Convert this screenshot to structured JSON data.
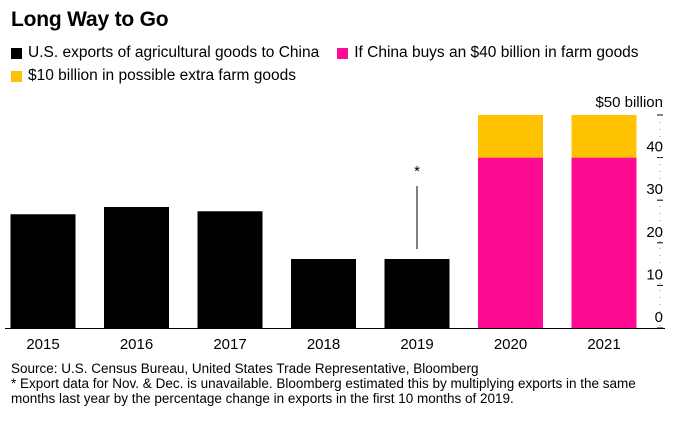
{
  "title": "Long Way to Go",
  "legend": [
    {
      "label": "U.S. exports of agricultural goods to China",
      "color": "#000000"
    },
    {
      "label": "If China buys an $40 billion in farm goods",
      "color": "#ff0a93"
    },
    {
      "label": "$10 billion in possible extra farm goods",
      "color": "#ffc200"
    }
  ],
  "notes": {
    "source": "Source: U.S. Census Bureau, United States Trade Representative, Bloomberg",
    "footnote": "* Export data for Nov. & Dec. is unavailable. Bloomberg estimated this by multiplying exports in the same months last year by the percentage change in exports in the first 10 months of 2019."
  },
  "chart_data": {
    "type": "bar",
    "stacked": true,
    "categories": [
      "2015",
      "2016",
      "2017",
      "2018",
      "2019",
      "2020",
      "2021"
    ],
    "series": [
      {
        "name": "U.S. exports of agricultural goods to China",
        "color": "#000000",
        "values": [
          26.7,
          28.4,
          27.4,
          16.2,
          16.2,
          null,
          null
        ]
      },
      {
        "name": "If China buys an $40 billion in farm goods",
        "color": "#ff0a93",
        "values": [
          null,
          null,
          null,
          null,
          null,
          40,
          40
        ]
      },
      {
        "name": "$10 billion in possible extra farm goods",
        "color": "#ffc200",
        "values": [
          null,
          null,
          null,
          null,
          null,
          10,
          10
        ]
      }
    ],
    "annotation": {
      "category": "2019",
      "text": "*"
    },
    "ylim": [
      0,
      50
    ],
    "yticks": [
      0,
      10,
      20,
      30,
      40
    ],
    "y_top_label": "$50 billion",
    "axis_side": "right"
  }
}
